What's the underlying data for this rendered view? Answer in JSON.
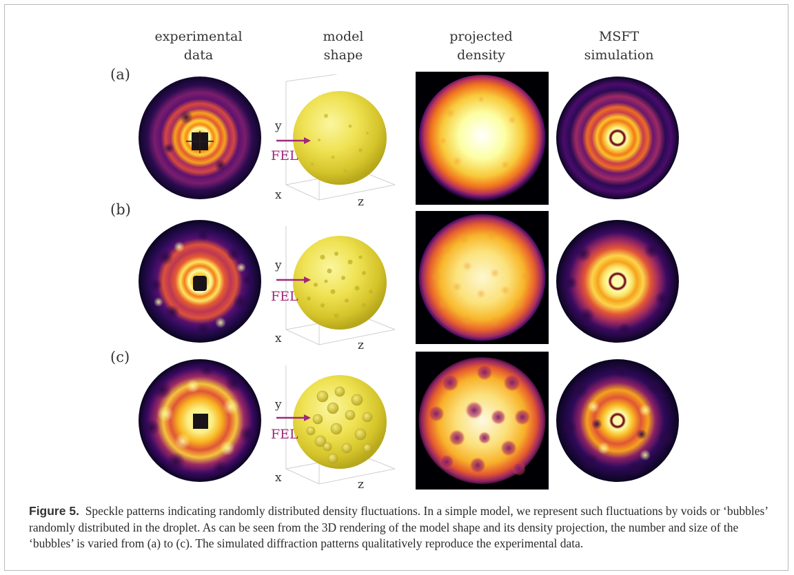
{
  "figure": {
    "column_headers": [
      "experimental\ndata",
      "model\nshape",
      "projected\ndensity",
      "MSFT\nsimulation"
    ],
    "rows": [
      {
        "label": "(a)"
      },
      {
        "label": "(b)"
      },
      {
        "label": "(c)"
      }
    ],
    "axis_labels": {
      "x": "x",
      "y": "y",
      "z": "z"
    },
    "beam_label": "FEL",
    "colors": {
      "beam": "#a0287a",
      "sphere": "#e7da3f",
      "inferno_bright": "#fcffa4",
      "inferno_dark": "#0c0626"
    }
  },
  "caption": {
    "label": "Figure 5.",
    "text": "Speckle patterns indicating randomly distributed density fluctuations. In a simple model, we represent such fluctuations by voids or ‘bubbles’ randomly distributed in the droplet. As can be seen from the 3D rendering of the model shape and its density projection, the number and size of the ‘bubbles’ is varied from (a) to (c). The simulated diffraction patterns qualitatively reproduce the experimental data."
  }
}
